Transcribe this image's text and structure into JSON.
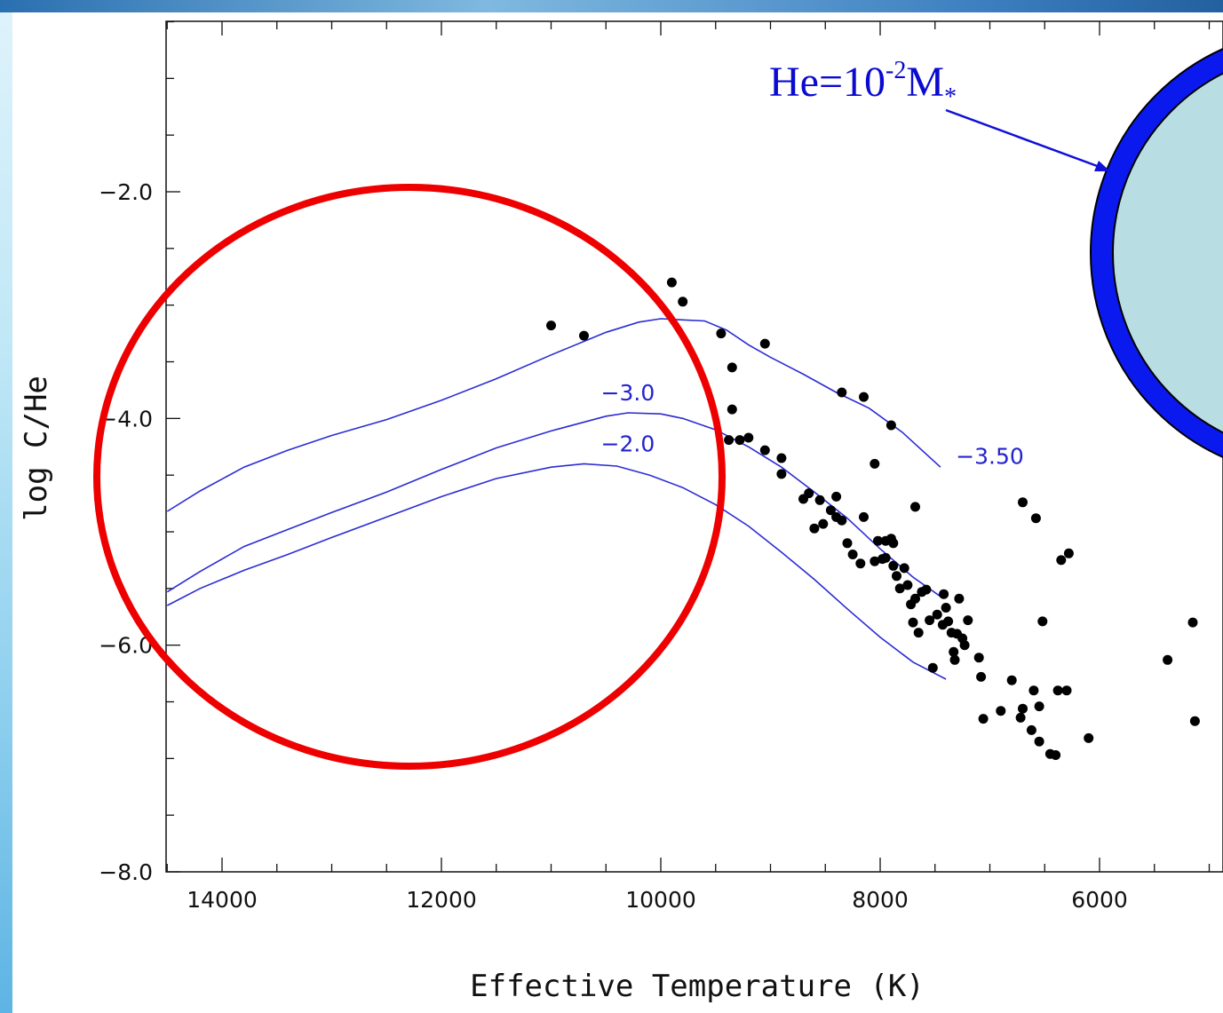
{
  "chart_data": {
    "type": "scatter",
    "title": "",
    "xlabel": "Effective Temperature (K)",
    "ylabel": "log C/He",
    "xlim": [
      14500,
      5050
    ],
    "ylim": [
      -8.0,
      -0.5
    ],
    "x_reversed": true,
    "x_ticks": [
      "14000",
      "12000",
      "10000",
      "8000",
      "6000"
    ],
    "x_tick_values": [
      14000,
      12000,
      10000,
      8000,
      6000
    ],
    "y_ticks": [
      "-2.0",
      "-4.0",
      "-6.0",
      "-8.0"
    ],
    "y_tick_values": [
      -2.0,
      -4.0,
      -6.0,
      -8.0
    ],
    "grid": false,
    "legend": "none",
    "points": [
      [
        11000,
        -3.18
      ],
      [
        10700,
        -3.27
      ],
      [
        9900,
        -2.8
      ],
      [
        9800,
        -2.97
      ],
      [
        9450,
        -3.25
      ],
      [
        9350,
        -3.55
      ],
      [
        9350,
        -3.92
      ],
      [
        9380,
        -4.19
      ],
      [
        9280,
        -4.19
      ],
      [
        9200,
        -4.17
      ],
      [
        9050,
        -3.34
      ],
      [
        9050,
        -4.28
      ],
      [
        8900,
        -4.35
      ],
      [
        8900,
        -4.49
      ],
      [
        8700,
        -4.71
      ],
      [
        8650,
        -4.66
      ],
      [
        8600,
        -4.97
      ],
      [
        8550,
        -4.72
      ],
      [
        8520,
        -4.93
      ],
      [
        8450,
        -4.81
      ],
      [
        8400,
        -4.69
      ],
      [
        8350,
        -3.77
      ],
      [
        8400,
        -4.87
      ],
      [
        8350,
        -4.9
      ],
      [
        8300,
        -5.1
      ],
      [
        8250,
        -5.2
      ],
      [
        8150,
        -3.81
      ],
      [
        8180,
        -5.28
      ],
      [
        8150,
        -4.87
      ],
      [
        8050,
        -4.4
      ],
      [
        8050,
        -5.26
      ],
      [
        8020,
        -5.08
      ],
      [
        7980,
        -5.24
      ],
      [
        7950,
        -5.08
      ],
      [
        7950,
        -5.23
      ],
      [
        7900,
        -5.06
      ],
      [
        7900,
        -4.06
      ],
      [
        7880,
        -5.1
      ],
      [
        7880,
        -5.3
      ],
      [
        7850,
        -5.39
      ],
      [
        7820,
        -5.5
      ],
      [
        7780,
        -5.32
      ],
      [
        7750,
        -5.47
      ],
      [
        7720,
        -5.64
      ],
      [
        7700,
        -5.8
      ],
      [
        7680,
        -5.59
      ],
      [
        7680,
        -4.78
      ],
      [
        7650,
        -5.89
      ],
      [
        7620,
        -5.53
      ],
      [
        7580,
        -5.51
      ],
      [
        7550,
        -5.78
      ],
      [
        7520,
        -6.2
      ],
      [
        7480,
        -5.73
      ],
      [
        7430,
        -5.82
      ],
      [
        7420,
        -5.55
      ],
      [
        7400,
        -5.67
      ],
      [
        7380,
        -5.79
      ],
      [
        7350,
        -5.89
      ],
      [
        7330,
        -6.06
      ],
      [
        7320,
        -6.13
      ],
      [
        7300,
        -5.9
      ],
      [
        7280,
        -5.59
      ],
      [
        7250,
        -5.94
      ],
      [
        7230,
        -6.0
      ],
      [
        7200,
        -5.78
      ],
      [
        7100,
        -6.11
      ],
      [
        7080,
        -6.28
      ],
      [
        7060,
        -6.65
      ],
      [
        6900,
        -6.58
      ],
      [
        6800,
        -6.31
      ],
      [
        6720,
        -6.64
      ],
      [
        6700,
        -6.56
      ],
      [
        6700,
        -4.74
      ],
      [
        6620,
        -6.75
      ],
      [
        6600,
        -6.4
      ],
      [
        6580,
        -4.88
      ],
      [
        6550,
        -6.54
      ],
      [
        6550,
        -6.85
      ],
      [
        6520,
        -5.79
      ],
      [
        6450,
        -6.96
      ],
      [
        6350,
        -5.25
      ],
      [
        6400,
        -6.97
      ],
      [
        6380,
        -6.4
      ],
      [
        6300,
        -6.4
      ],
      [
        6280,
        -5.19
      ],
      [
        6100,
        -6.82
      ],
      [
        5380,
        -6.13
      ],
      [
        5150,
        -5.8
      ],
      [
        5130,
        -6.67
      ]
    ],
    "series": [
      {
        "name": "",
        "values": [
          [
            14500,
            -4.82
          ],
          [
            14200,
            -4.64
          ],
          [
            13800,
            -4.43
          ],
          [
            13400,
            -4.28
          ],
          [
            13000,
            -4.15
          ],
          [
            12500,
            -4.01
          ],
          [
            12000,
            -3.84
          ],
          [
            11500,
            -3.65
          ],
          [
            11000,
            -3.44
          ],
          [
            10500,
            -3.24
          ],
          [
            10200,
            -3.15
          ],
          [
            10000,
            -3.12
          ],
          [
            9800,
            -3.13
          ],
          [
            9600,
            -3.14
          ],
          [
            9400,
            -3.22
          ],
          [
            9200,
            -3.35
          ],
          [
            9000,
            -3.46
          ],
          [
            8700,
            -3.61
          ],
          [
            8400,
            -3.77
          ],
          [
            8100,
            -3.91
          ],
          [
            7800,
            -4.12
          ],
          [
            7450,
            -4.43
          ]
        ]
      },
      {
        "name": "",
        "values": [
          [
            14500,
            -5.53
          ],
          [
            14200,
            -5.35
          ],
          [
            13800,
            -5.13
          ],
          [
            13400,
            -4.98
          ],
          [
            13000,
            -4.83
          ],
          [
            12500,
            -4.65
          ],
          [
            12000,
            -4.45
          ],
          [
            11500,
            -4.26
          ],
          [
            11000,
            -4.11
          ],
          [
            10500,
            -3.98
          ],
          [
            10300,
            -3.95
          ],
          [
            10000,
            -3.96
          ],
          [
            9800,
            -4.0
          ],
          [
            9500,
            -4.1
          ],
          [
            9200,
            -4.25
          ],
          [
            8900,
            -4.43
          ],
          [
            8600,
            -4.65
          ],
          [
            8300,
            -4.88
          ],
          [
            8000,
            -5.15
          ],
          [
            7700,
            -5.4
          ],
          [
            7450,
            -5.57
          ]
        ]
      },
      {
        "name": "",
        "values": [
          [
            14500,
            -5.65
          ],
          [
            14200,
            -5.5
          ],
          [
            13800,
            -5.34
          ],
          [
            13400,
            -5.2
          ],
          [
            13000,
            -5.05
          ],
          [
            12500,
            -4.87
          ],
          [
            12000,
            -4.69
          ],
          [
            11500,
            -4.53
          ],
          [
            11000,
            -4.43
          ],
          [
            10700,
            -4.4
          ],
          [
            10400,
            -4.42
          ],
          [
            10100,
            -4.5
          ],
          [
            9800,
            -4.61
          ],
          [
            9500,
            -4.76
          ],
          [
            9200,
            -4.95
          ],
          [
            8900,
            -5.18
          ],
          [
            8600,
            -5.42
          ],
          [
            8300,
            -5.68
          ],
          [
            8000,
            -5.93
          ],
          [
            7700,
            -6.15
          ],
          [
            7400,
            -6.3
          ]
        ]
      }
    ],
    "curve_labels": [
      {
        "text": "-3.0",
        "x": 10300,
        "y": -3.84
      },
      {
        "text": "-2.0",
        "x": 10300,
        "y": -4.29
      },
      {
        "text": "-3.50",
        "x": 7000,
        "y": -4.4
      }
    ]
  },
  "callout": {
    "base": "He=10",
    "exponent": "-2",
    "unit": "M",
    "subscript": "*"
  },
  "colors": {
    "curves": "#2b2bd4",
    "points": "#000000",
    "highlight_circle": "#ee0000",
    "star_shell": "#0a1aee",
    "star_core": "#b8dde3",
    "callout_text": "#0a0ad0"
  }
}
